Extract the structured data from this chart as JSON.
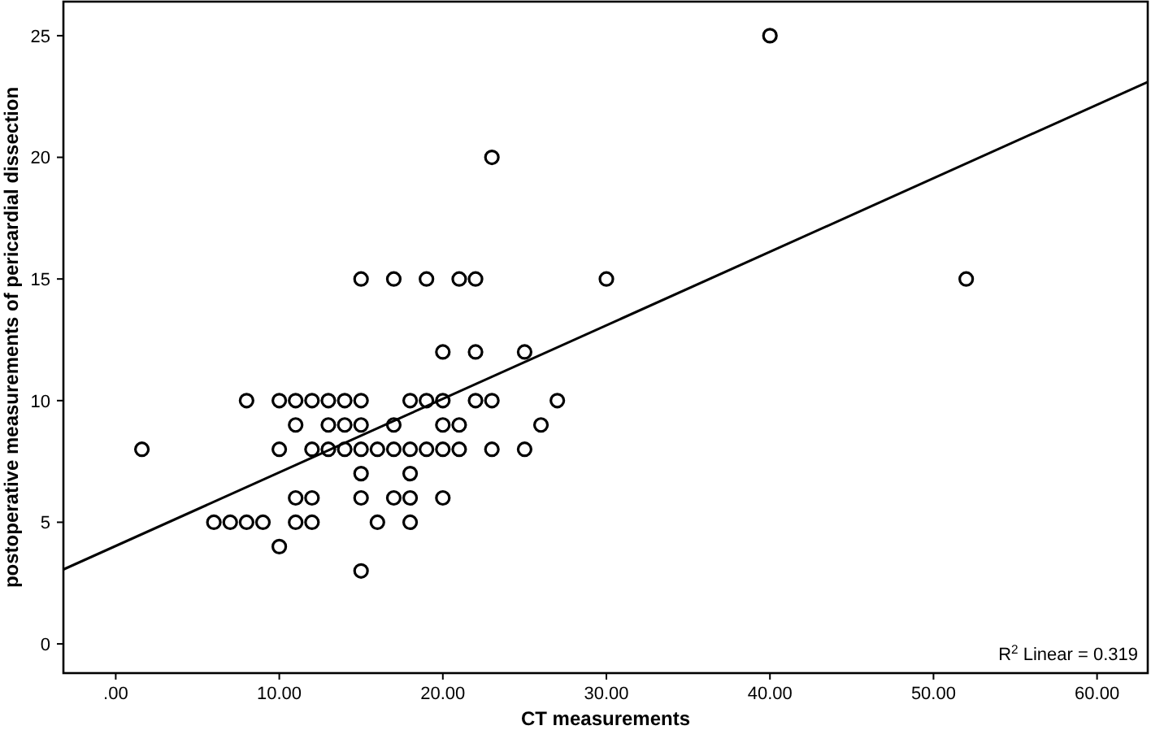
{
  "chart_data": {
    "type": "scatter",
    "xlabel": "CT measurements",
    "ylabel": "postoperative measurements of pericardial dissection",
    "xlim": [
      -3.2,
      63.1
    ],
    "ylim": [
      -1.2,
      26.4
    ],
    "xticks": [
      {
        "value": 0,
        "label": ".00"
      },
      {
        "value": 10,
        "label": "10.00"
      },
      {
        "value": 20,
        "label": "20.00"
      },
      {
        "value": 30,
        "label": "30.00"
      },
      {
        "value": 40,
        "label": "40.00"
      },
      {
        "value": 50,
        "label": "50.00"
      },
      {
        "value": 60,
        "label": "60.00"
      }
    ],
    "yticks": [
      0,
      5,
      10,
      15,
      20,
      25
    ],
    "grid": false,
    "marker": "circle",
    "series": [
      {
        "color": "#000000",
        "x": [
          40,
          23,
          15,
          17,
          19,
          21,
          22,
          30,
          52,
          20,
          22,
          25,
          8,
          10,
          11,
          12,
          13,
          14,
          15,
          18,
          19,
          20,
          22,
          23,
          27,
          11,
          13,
          14,
          15,
          17,
          20,
          21,
          26,
          1.6,
          10,
          12,
          13,
          14,
          15,
          16,
          17,
          18,
          19,
          20,
          21,
          23,
          25,
          15,
          18,
          11,
          12,
          15,
          17,
          18,
          20,
          6,
          7,
          8,
          9,
          11,
          12,
          16,
          18,
          10,
          15
        ],
        "values": [
          25,
          20,
          15,
          15,
          15,
          15,
          15,
          15,
          15,
          12,
          12,
          12,
          10,
          10,
          10,
          10,
          10,
          10,
          10,
          10,
          10,
          10,
          10,
          10,
          10,
          9,
          9,
          9,
          9,
          9,
          9,
          9,
          9,
          8,
          8,
          8,
          8,
          8,
          8,
          8,
          8,
          8,
          8,
          8,
          8,
          8,
          8,
          7,
          7,
          6,
          6,
          6,
          6,
          6,
          6,
          5,
          5,
          5,
          5,
          5,
          5,
          5,
          5,
          4,
          3
        ]
      },
      {
        "type": "line",
        "color": "#000000",
        "line_style": "solid",
        "marker": "none",
        "x": [
          -3.2,
          63.1
        ],
        "values": [
          3.06,
          23.1
        ]
      }
    ],
    "annotations": [
      "R$^{2}$ Linear = 0.319"
    ]
  }
}
